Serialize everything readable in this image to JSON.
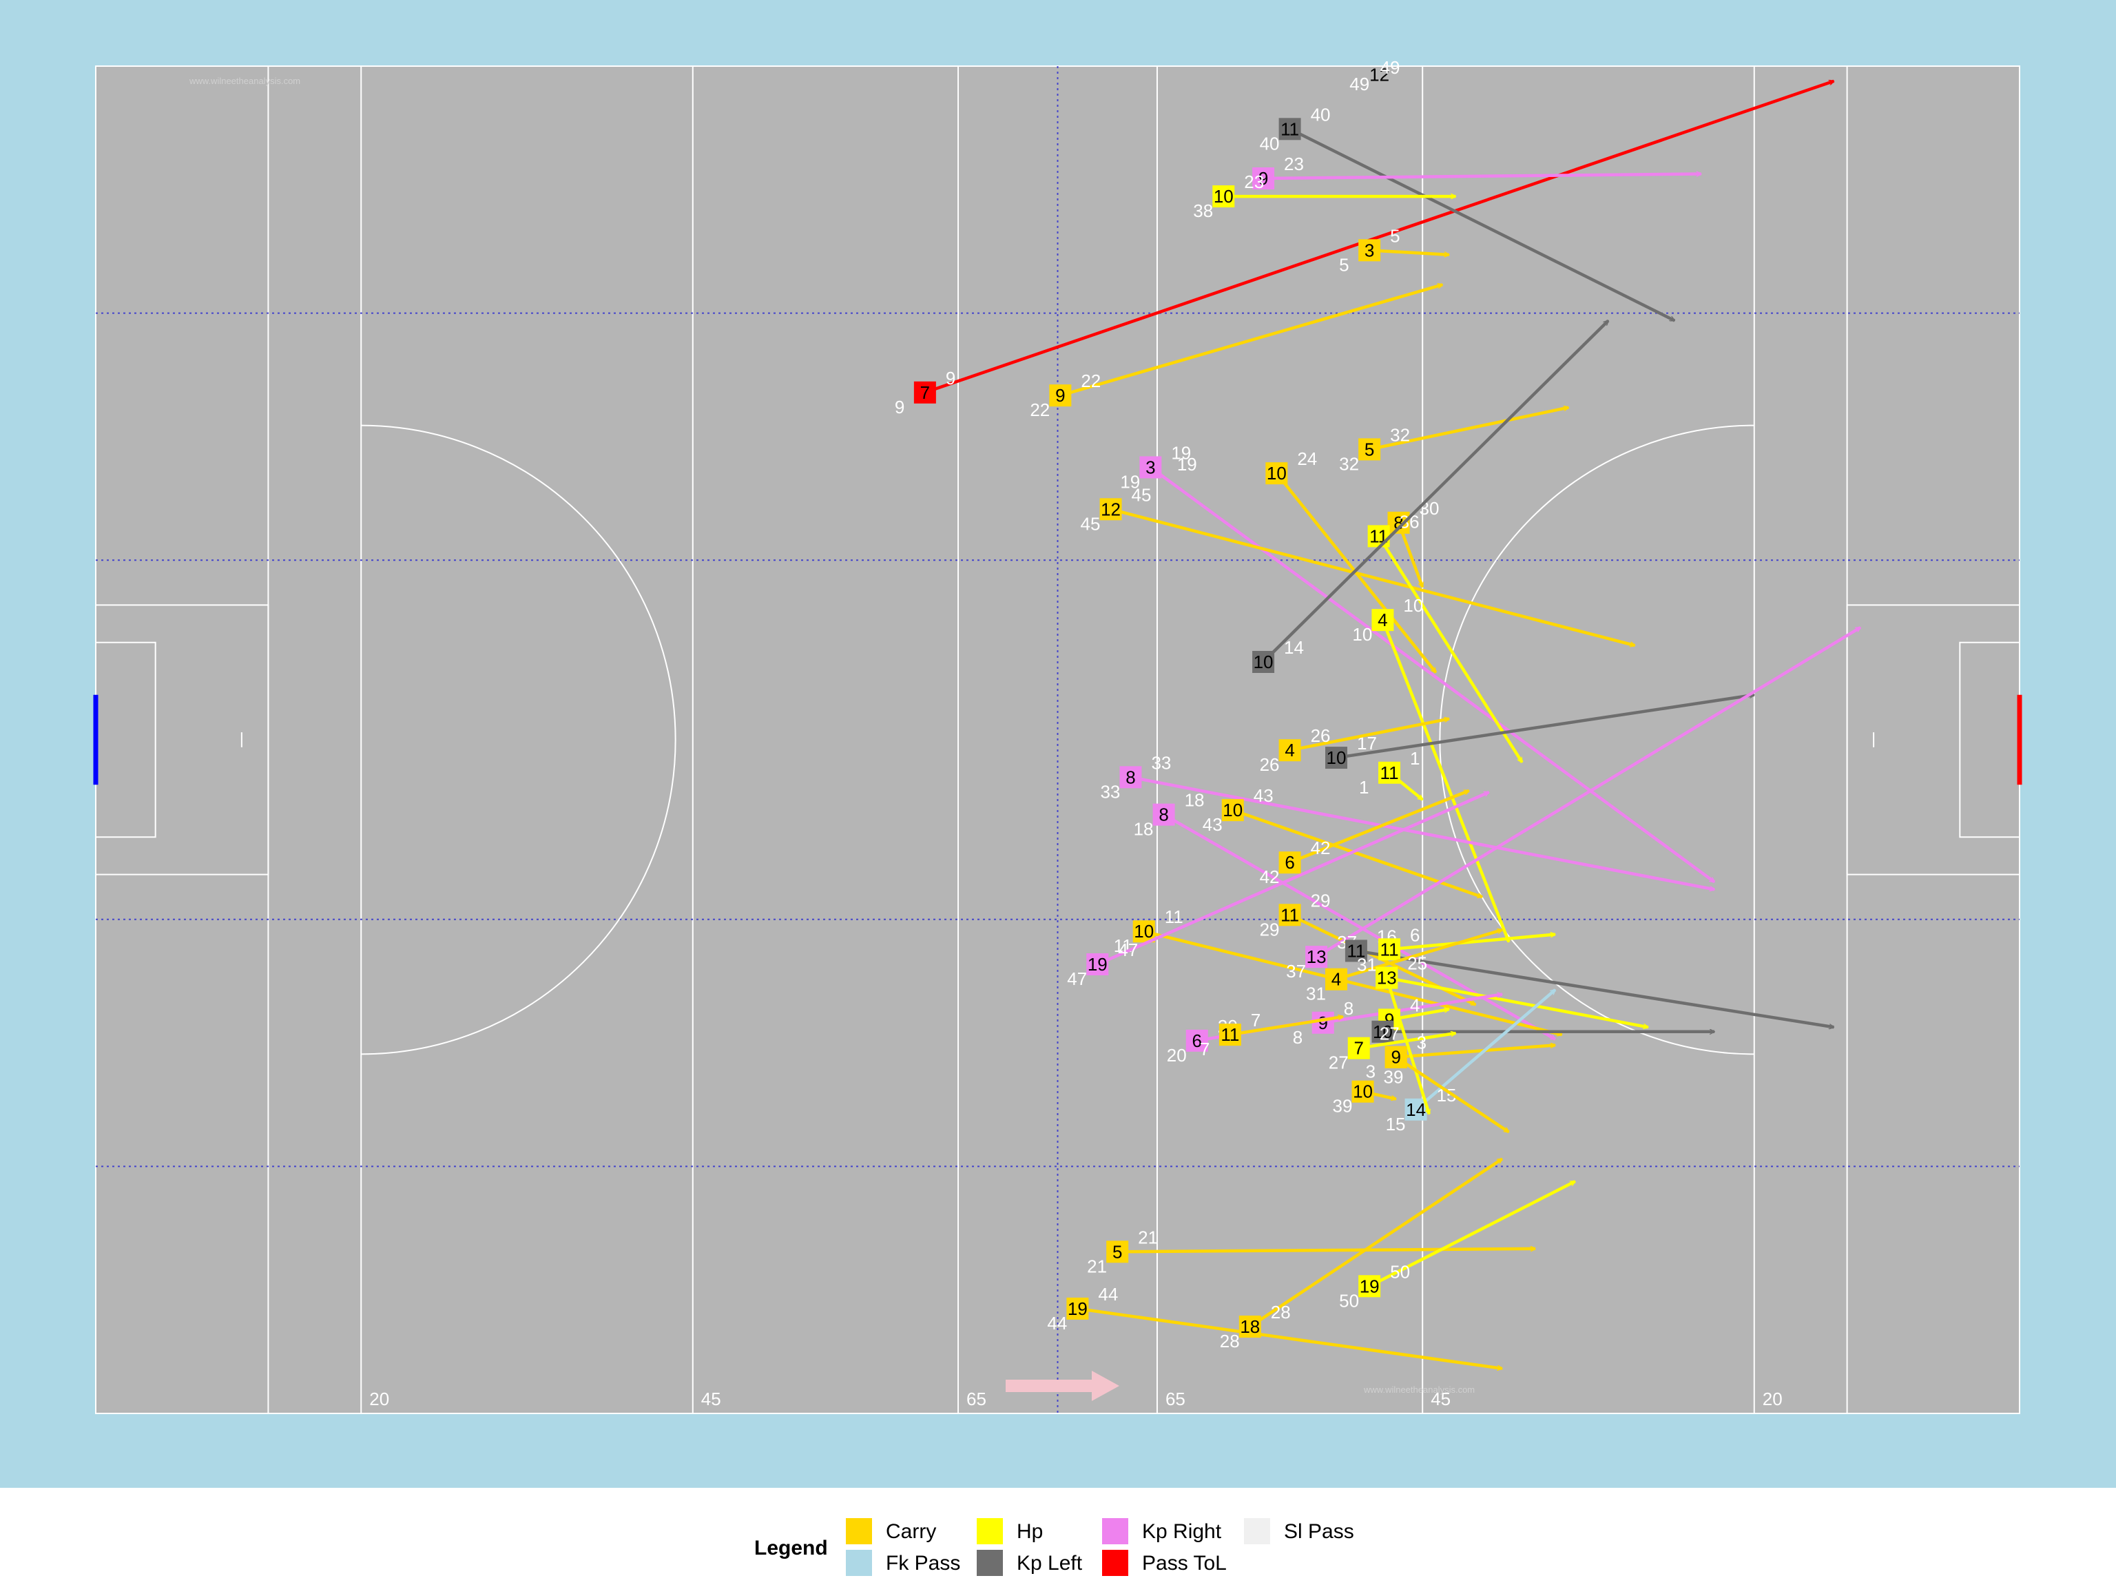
{
  "colors": {
    "background": "#add8e6",
    "pitch": "#b5b5b5",
    "lines": "#ffffff",
    "thirds": "#4444cc",
    "direction_arrow": "#f4c4cc",
    "left_goal": "#0000ff",
    "right_goal": "#ff0000"
  },
  "watermark": "www.wilneetheanalysis.com",
  "legend": {
    "title": "Legend",
    "items": [
      {
        "key": "Carry",
        "label": "Carry",
        "color": "#ffd700"
      },
      {
        "key": "Fk Pass",
        "label": "Fk Pass",
        "color": "#add8e6"
      },
      {
        "key": "Hp",
        "label": "Hp",
        "color": "#ffff00"
      },
      {
        "key": "Kp Left",
        "label": "Kp Left",
        "color": "#6e6e6e"
      },
      {
        "key": "Kp Right",
        "label": "Kp Right",
        "color": "#ee82ee"
      },
      {
        "key": "Pass ToL",
        "label": "Pass ToL",
        "color": "#ff0000"
      },
      {
        "key": "Sl Pass",
        "label": "Sl Pass",
        "color": "#f0f0f0"
      }
    ]
  },
  "chart_data": {
    "type": "scatter",
    "title": "",
    "xlabel": "",
    "ylabel": "",
    "xlim": [
      0,
      145
    ],
    "ylim": [
      0,
      90
    ],
    "grid": false,
    "legend_position": "bottom",
    "pitch_lines": {
      "x": [
        13,
        20,
        45,
        65,
        80,
        100,
        125,
        132
      ],
      "labels": [
        {
          "x": 20,
          "text": "20"
        },
        {
          "x": 45,
          "text": "45"
        },
        {
          "x": 65,
          "text": "65"
        },
        {
          "x": 80,
          "text": "65"
        },
        {
          "x": 100,
          "text": "45"
        },
        {
          "x": 125,
          "text": "20"
        }
      ],
      "dotted_x": [
        72.5
      ],
      "dotted_y": [
        16.5,
        33,
        57,
        73.5
      ],
      "arc_y_range": [
        24,
        66
      ]
    },
    "events": [
      {
        "type": "Pass ToL",
        "player": "7",
        "x": 62.5,
        "y": 68.2,
        "end_x": 131.0,
        "end_y": 89.0,
        "ls": "9",
        "le": "9"
      },
      {
        "type": "Kp Left",
        "player": "11",
        "x": 90.0,
        "y": 85.8,
        "end_x": 119.0,
        "end_y": 73.0,
        "ls": "40",
        "le": "40"
      },
      {
        "type": "Kp Right",
        "player": "9",
        "x": 88.0,
        "y": 82.5,
        "end_x": 121.0,
        "end_y": 82.8,
        "ls": "23",
        "le": ""
      },
      {
        "type": "Hp",
        "player": "10",
        "x": 85.0,
        "y": 81.3,
        "end_x": 102.5,
        "end_y": 81.3,
        "ls": "23",
        "le": "38"
      },
      {
        "type": "Carry",
        "player": "3",
        "x": 96.0,
        "y": 77.7,
        "end_x": 102.0,
        "end_y": 77.4,
        "ls": "5",
        "le": "5"
      },
      {
        "type": "Carry",
        "player": "9",
        "x": 72.7,
        "y": 68.0,
        "end_x": 101.5,
        "end_y": 75.4,
        "ls": "22",
        "le": "22"
      },
      {
        "type": "Carry",
        "player": "5",
        "x": 96.0,
        "y": 64.4,
        "end_x": 111.0,
        "end_y": 67.2,
        "ls": "32",
        "le": "32"
      },
      {
        "type": "Kp Right",
        "player": "3",
        "x": 79.5,
        "y": 63.2,
        "end_x": 122.0,
        "end_y": 35.5,
        "ls": "19",
        "le": "19"
      },
      {
        "type": "Carry",
        "player": "10",
        "x": 89.0,
        "y": 62.8,
        "end_x": 101.0,
        "end_y": 49.5,
        "ls": "24",
        "le": ""
      },
      {
        "type": "Carry",
        "player": "12",
        "x": 76.5,
        "y": 60.4,
        "end_x": 116.0,
        "end_y": 51.3,
        "ls": "45",
        "le": "45"
      },
      {
        "type": "Carry",
        "player": "8",
        "x": 98.2,
        "y": 59.5,
        "end_x": 100.0,
        "end_y": 55.2,
        "ls": "30",
        "le": ""
      },
      {
        "type": "Hp",
        "player": "11",
        "x": 96.7,
        "y": 58.6,
        "end_x": 107.5,
        "end_y": 43.5,
        "ls": "36",
        "le": ""
      },
      {
        "type": "Kp Left",
        "player": "10",
        "x": 88.0,
        "y": 50.2,
        "end_x": 114.0,
        "end_y": 73.0,
        "ls": "14",
        "le": ""
      },
      {
        "type": "Hp",
        "player": "4",
        "x": 97.0,
        "y": 53.0,
        "end_x": 106.5,
        "end_y": 31.5,
        "ls": "10",
        "le": "10"
      },
      {
        "type": "Kp Left",
        "player": "10",
        "x": 93.5,
        "y": 43.8,
        "end_x": 125.0,
        "end_y": 48.0,
        "ls": "17",
        "le": ""
      },
      {
        "type": "Carry",
        "player": "4",
        "x": 90.0,
        "y": 44.3,
        "end_x": 102.0,
        "end_y": 46.4,
        "ls": "26",
        "le": "26"
      },
      {
        "type": "Hp",
        "player": "11",
        "x": 97.5,
        "y": 42.8,
        "end_x": 100.0,
        "end_y": 41.0,
        "ls": "1",
        "le": "1"
      },
      {
        "type": "Kp Right",
        "player": "8",
        "x": 78.0,
        "y": 42.5,
        "end_x": 122.0,
        "end_y": 35.0,
        "ls": "33",
        "le": "33"
      },
      {
        "type": "Kp Right",
        "player": "8",
        "x": 80.5,
        "y": 40.0,
        "end_x": 110.0,
        "end_y": 25.0,
        "ls": "18",
        "le": "18"
      },
      {
        "type": "Carry",
        "player": "10",
        "x": 85.7,
        "y": 40.3,
        "end_x": 104.5,
        "end_y": 34.5,
        "ls": "43",
        "le": "43"
      },
      {
        "type": "Carry",
        "player": "6",
        "x": 90.0,
        "y": 36.8,
        "end_x": 103.5,
        "end_y": 41.6,
        "ls": "42",
        "le": "42"
      },
      {
        "type": "Carry",
        "player": "11",
        "x": 90.0,
        "y": 33.3,
        "end_x": 104.0,
        "end_y": 27.3,
        "ls": "29",
        "le": "29"
      },
      {
        "type": "Carry",
        "player": "10",
        "x": 79.0,
        "y": 32.2,
        "end_x": 110.5,
        "end_y": 25.3,
        "ls": "11",
        "le": "11"
      },
      {
        "type": "Kp Right",
        "player": "19",
        "x": 75.5,
        "y": 30.0,
        "end_x": 105.0,
        "end_y": 41.5,
        "ls": "47",
        "le": "47"
      },
      {
        "type": "Kp Right",
        "player": "13",
        "x": 92.0,
        "y": 30.5,
        "end_x": 133.0,
        "end_y": 52.5,
        "ls": "37",
        "le": "37"
      },
      {
        "type": "Kp Left",
        "player": "11",
        "x": 95.0,
        "y": 30.9,
        "end_x": 131.0,
        "end_y": 25.8,
        "ls": "16",
        "le": ""
      },
      {
        "type": "Hp",
        "player": "11",
        "x": 97.5,
        "y": 31.0,
        "end_x": 110.0,
        "end_y": 32.0,
        "ls": "6",
        "le": ""
      },
      {
        "type": "Carry",
        "player": "4",
        "x": 93.5,
        "y": 29.0,
        "end_x": 106.0,
        "end_y": 32.3,
        "ls": "31",
        "le": "31"
      },
      {
        "type": "Hp",
        "player": "13",
        "x": 97.3,
        "y": 29.1,
        "end_x": 117.0,
        "end_y": 25.8,
        "ls": "25",
        "le": ""
      },
      {
        "type": "Kp Right",
        "player": "9",
        "x": 92.5,
        "y": 26.1,
        "end_x": 106.0,
        "end_y": 28.0,
        "ls": "8",
        "le": "8"
      },
      {
        "type": "Hp",
        "player": "9",
        "x": 97.5,
        "y": 26.3,
        "end_x": 102.0,
        "end_y": 27.0,
        "ls": "4",
        "le": ""
      },
      {
        "type": "Kp Right",
        "player": "6",
        "x": 83.0,
        "y": 24.9,
        "end_x": 93.0,
        "end_y": 26.4,
        "ls": "20",
        "le": "20"
      },
      {
        "type": "Carry",
        "player": "11",
        "x": 85.5,
        "y": 25.3,
        "end_x": 94.0,
        "end_y": 26.5,
        "ls": "7",
        "le": "7"
      },
      {
        "type": "Kp Left",
        "player": "10",
        "x": 97.0,
        "y": 25.5,
        "end_x": 122.0,
        "end_y": 25.5,
        "ls": "",
        "le": ""
      },
      {
        "type": "Hp",
        "player": "7",
        "x": 95.2,
        "y": 24.4,
        "end_x": 102.5,
        "end_y": 25.4,
        "ls": "27",
        "le": "27"
      },
      {
        "type": "Carry",
        "player": "9",
        "x": 98.0,
        "y": 23.8,
        "end_x": 110.0,
        "end_y": 24.6,
        "ls": "3",
        "le": "3"
      },
      {
        "type": "Fk Pass",
        "player": "14",
        "x": 99.5,
        "y": 20.3,
        "end_x": 110.0,
        "end_y": 28.3,
        "ls": "15",
        "le": "15"
      },
      {
        "type": "Carry",
        "player": "10",
        "x": 95.5,
        "y": 21.5,
        "end_x": 98.0,
        "end_y": 21.0,
        "ls": "39",
        "le": "39"
      },
      {
        "type": "Hp",
        "player": "13",
        "x": 97.3,
        "y": 29.1,
        "end_x": 100.5,
        "end_y": 20.0,
        "ls": "",
        "le": ""
      },
      {
        "type": "Carry",
        "player": "9",
        "x": 98.0,
        "y": 23.8,
        "end_x": 106.5,
        "end_y": 18.8,
        "ls": "",
        "le": ""
      },
      {
        "type": "Carry",
        "player": "5",
        "x": 77.0,
        "y": 10.8,
        "end_x": 108.5,
        "end_y": 11.0,
        "ls": "21",
        "le": "21"
      },
      {
        "type": "Hp",
        "player": "19",
        "x": 96.0,
        "y": 8.5,
        "end_x": 111.5,
        "end_y": 15.5,
        "ls": "50",
        "le": "50"
      },
      {
        "type": "Carry",
        "player": "19",
        "x": 74.0,
        "y": 7.0,
        "end_x": 106.0,
        "end_y": 3.0,
        "ls": "44",
        "le": "44"
      },
      {
        "type": "Carry",
        "player": "18",
        "x": 87.0,
        "y": 5.8,
        "end_x": 106.0,
        "end_y": 17.0,
        "ls": "28",
        "le": "28"
      }
    ],
    "extra_labels": [
      {
        "x": 94.5,
        "y": 88.4,
        "text": "49"
      },
      {
        "x": 96.0,
        "y": 89.0,
        "text": "12"
      },
      {
        "x": 96.8,
        "y": 89.5,
        "text": "49"
      },
      {
        "x": 81.5,
        "y": 63.0,
        "text": "19"
      },
      {
        "x": 82.0,
        "y": 63.0,
        "text": ""
      }
    ]
  }
}
